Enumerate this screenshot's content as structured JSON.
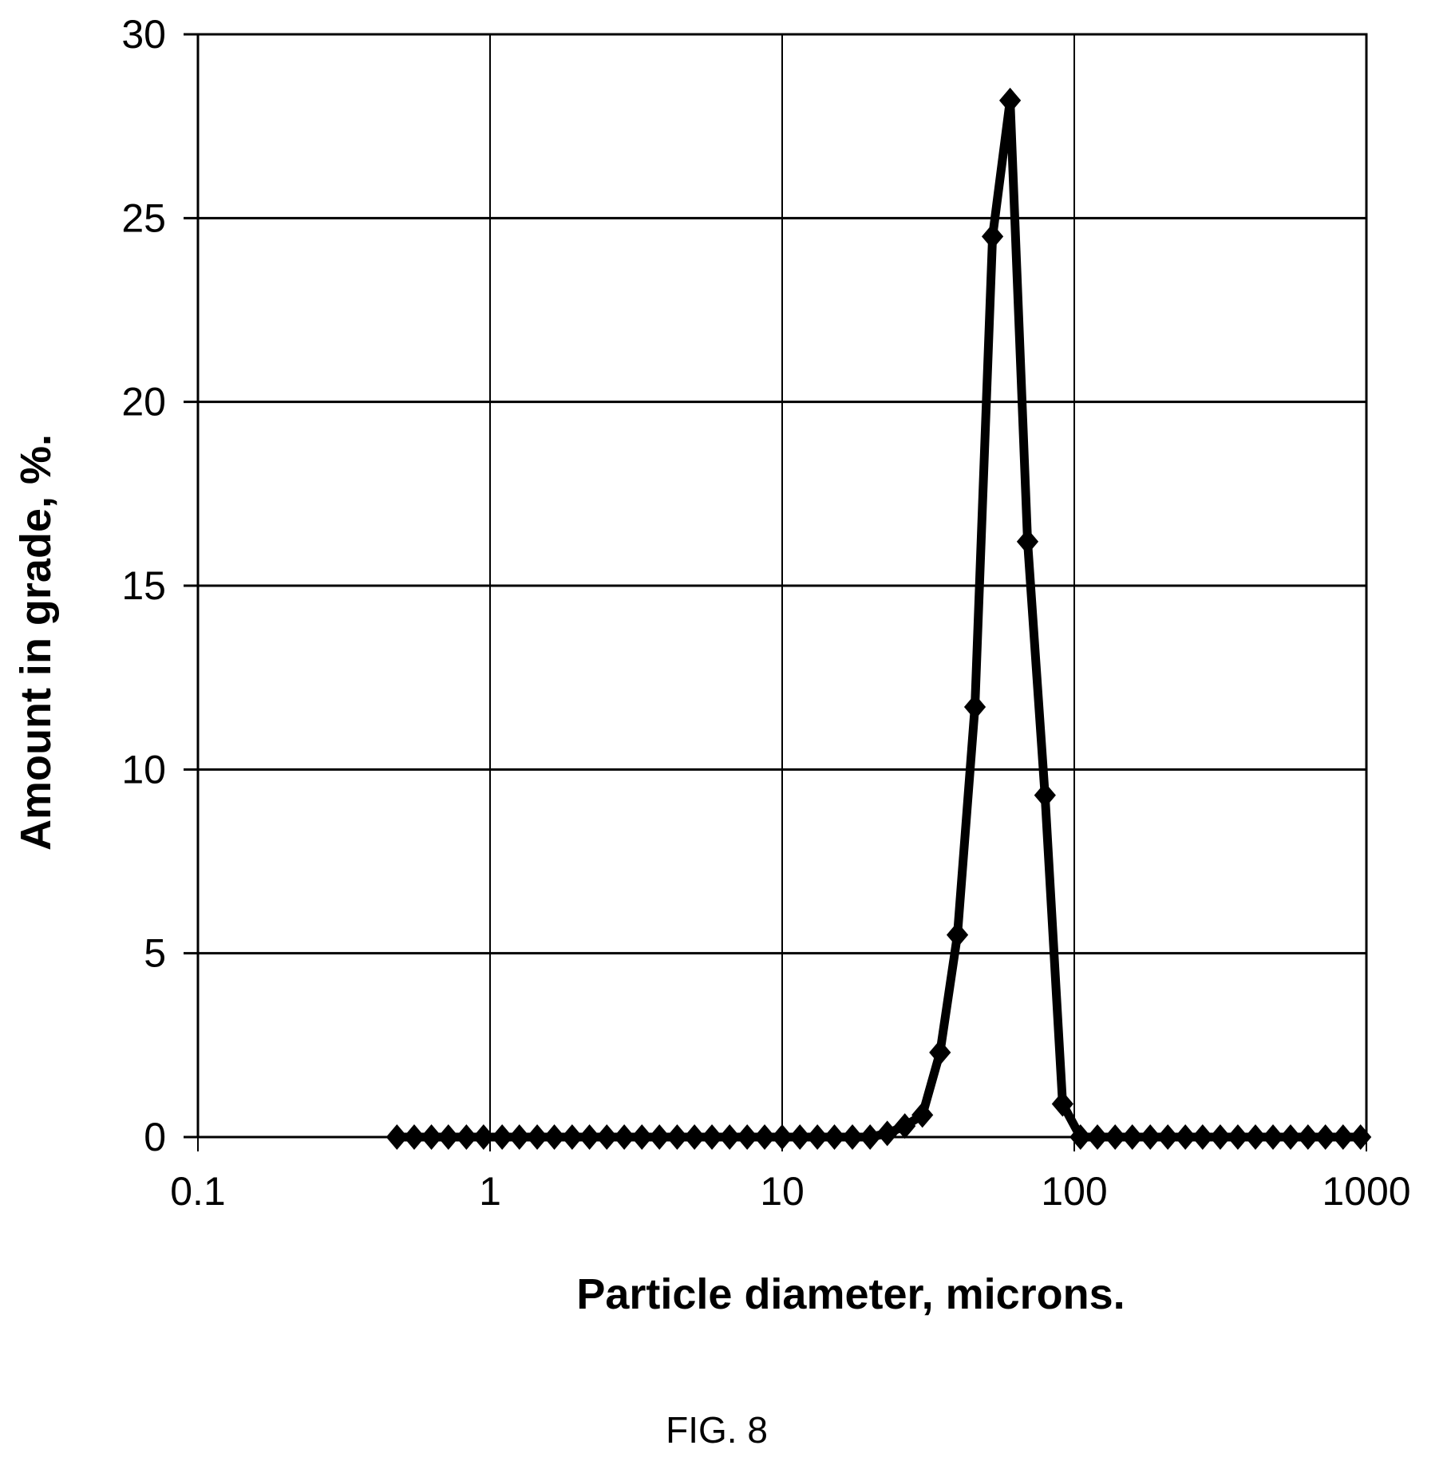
{
  "chart_data": {
    "type": "line",
    "title": "",
    "xlabel": "Particle diameter, microns.",
    "ylabel": "Amount in grade, %.",
    "xscale": "log",
    "xlim": [
      0.1,
      1000
    ],
    "ylim": [
      0,
      30
    ],
    "xticks": [
      0.1,
      1,
      10,
      100,
      1000
    ],
    "xtick_labels": [
      "0.1",
      "1",
      "10",
      "100",
      "1000"
    ],
    "yticks": [
      0,
      5,
      10,
      15,
      20,
      25,
      30
    ],
    "ytick_labels": [
      "0",
      "5",
      "10",
      "15",
      "20",
      "25",
      "30"
    ],
    "grid": true,
    "legend": "none",
    "line_color": "#000000",
    "marker": "diamond",
    "series": [
      {
        "x": [
          0.48,
          0.55,
          0.63,
          0.72,
          0.83,
          0.95,
          1.1,
          1.26,
          1.45,
          1.66,
          1.91,
          2.19,
          2.51,
          2.88,
          3.31,
          3.8,
          4.37,
          5.01,
          5.75,
          6.61,
          7.59,
          8.71,
          10.0,
          11.5,
          13.2,
          15.1,
          17.4,
          20.0,
          22.9,
          26.3,
          30.2,
          34.7,
          39.8,
          45.7,
          52.5,
          60.3,
          69.2,
          79.4,
          91.2,
          105,
          120,
          138,
          158,
          182,
          209,
          240,
          275,
          316,
          363,
          417,
          479,
          550,
          631,
          724,
          832,
          955
        ],
        "y": [
          0,
          0,
          0,
          0,
          0,
          0,
          0,
          0,
          0,
          0,
          0,
          0,
          0,
          0,
          0,
          0,
          0,
          0,
          0,
          0,
          0,
          0,
          0,
          0,
          0,
          0,
          0,
          0,
          0.1,
          0.3,
          0.6,
          2.3,
          5.5,
          11.7,
          24.5,
          28.2,
          16.2,
          9.3,
          0.9,
          0,
          0,
          0,
          0,
          0,
          0,
          0,
          0,
          0,
          0,
          0,
          0,
          0,
          0,
          0,
          0,
          0
        ]
      }
    ]
  },
  "caption": "FIG.  8"
}
